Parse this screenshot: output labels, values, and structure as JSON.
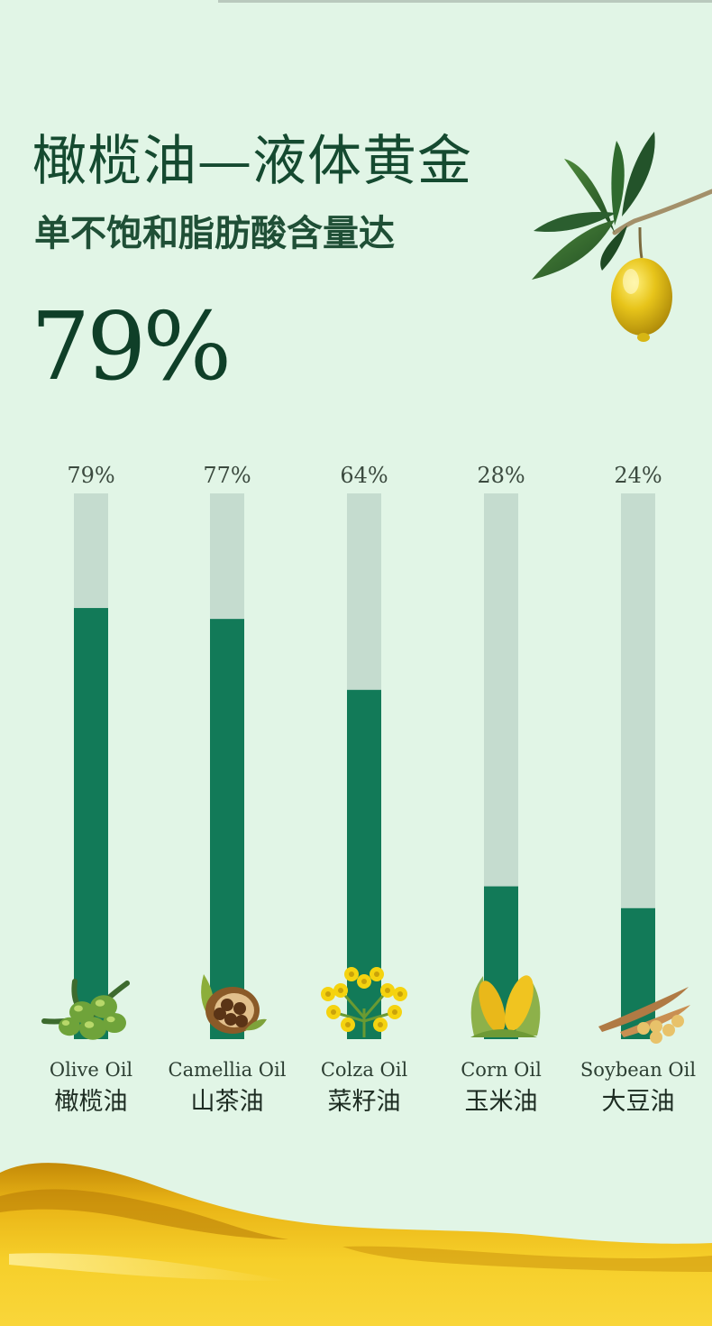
{
  "header": {
    "title": "橄榄油—液体黄金",
    "subtitle": "单不饱和脂肪酸含量达",
    "highlight_value": "79%"
  },
  "colors": {
    "background": "#e1f5e6",
    "bar_fill": "#127a58",
    "bar_track": "#c5dccf",
    "text_dark": "#154a30",
    "oil_gold": "#f0c020"
  },
  "chart_data": {
    "type": "bar",
    "categories": [
      "Olive Oil 橄榄油",
      "Camellia Oil 山茶油",
      "Colza Oil 菜籽油",
      "Corn Oil 玉米油",
      "Soybean Oil 大豆油"
    ],
    "category_en": [
      "Olive Oil",
      "Camellia Oil",
      "Colza Oil",
      "Corn Oil",
      "Soybean Oil"
    ],
    "category_zh": [
      "橄榄油",
      "山茶油",
      "菜籽油",
      "玉米油",
      "大豆油"
    ],
    "values": [
      79,
      77,
      64,
      28,
      24
    ],
    "value_labels": [
      "79%",
      "77%",
      "64%",
      "28%",
      "24%"
    ],
    "icons": [
      "olive-icon",
      "camellia-seed-icon",
      "colza-flower-icon",
      "corn-icon",
      "soybean-icon"
    ],
    "ylim": [
      0,
      100
    ],
    "title": "",
    "xlabel": "",
    "ylabel": "",
    "grid": false,
    "legend": "none"
  }
}
